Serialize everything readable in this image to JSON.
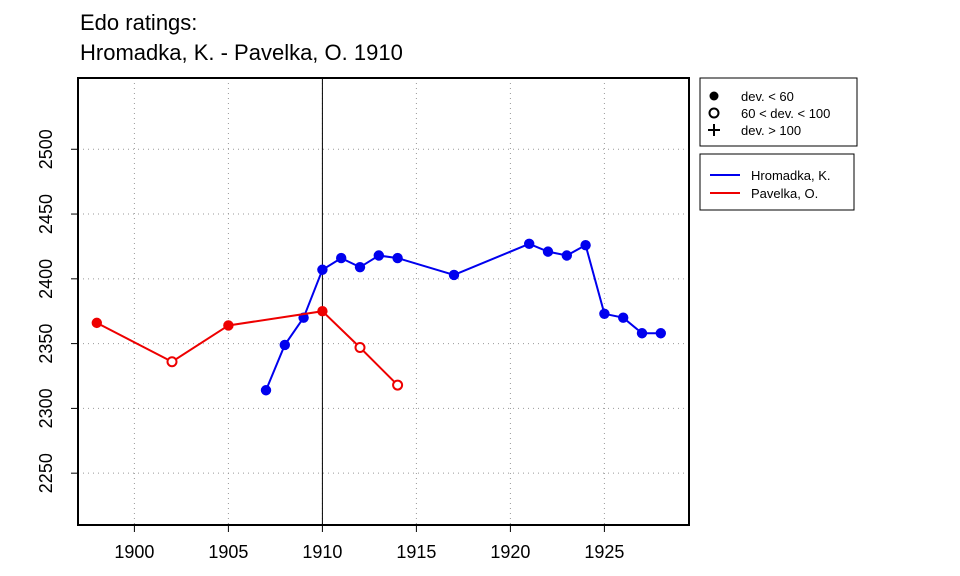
{
  "title": {
    "line1": "Edo ratings:",
    "line2": "Hromadka, K. - Pavelka, O. 1910"
  },
  "chart_data": {
    "type": "line",
    "title": "Edo ratings:\nHromadka, K. - Pavelka, O. 1910",
    "xlabel": "",
    "ylabel": "",
    "xlim": [
      1897,
      1929.5
    ],
    "ylim": [
      2210,
      2555
    ],
    "xticks": [
      1900,
      1905,
      1910,
      1915,
      1920,
      1925
    ],
    "yticks": [
      2250,
      2300,
      2350,
      2400,
      2450,
      2500
    ],
    "grid": true,
    "reference_line_x": 1910,
    "legend_placement": "right, outside plot",
    "deviation_legend": [
      {
        "label": "dev. < 60",
        "marker": "filled-circle"
      },
      {
        "label": "60 < dev. < 100",
        "marker": "open-circle"
      },
      {
        "label": "dev. > 100",
        "marker": "plus"
      }
    ],
    "series": [
      {
        "name": "Hromadka, K.",
        "color": "#0000ee",
        "points": [
          {
            "x": 1907,
            "y": 2314,
            "marker": "filled"
          },
          {
            "x": 1908,
            "y": 2349,
            "marker": "filled"
          },
          {
            "x": 1909,
            "y": 2370,
            "marker": "filled"
          },
          {
            "x": 1910,
            "y": 2407,
            "marker": "filled"
          },
          {
            "x": 1911,
            "y": 2416,
            "marker": "filled"
          },
          {
            "x": 1912,
            "y": 2409,
            "marker": "filled"
          },
          {
            "x": 1913,
            "y": 2418,
            "marker": "filled"
          },
          {
            "x": 1914,
            "y": 2416,
            "marker": "filled"
          },
          {
            "x": 1917,
            "y": 2403,
            "marker": "filled"
          },
          {
            "x": 1921,
            "y": 2427,
            "marker": "filled"
          },
          {
            "x": 1922,
            "y": 2421,
            "marker": "filled"
          },
          {
            "x": 1923,
            "y": 2418,
            "marker": "filled"
          },
          {
            "x": 1924,
            "y": 2426,
            "marker": "filled"
          },
          {
            "x": 1925,
            "y": 2373,
            "marker": "filled"
          },
          {
            "x": 1926,
            "y": 2370,
            "marker": "filled"
          },
          {
            "x": 1927,
            "y": 2358,
            "marker": "filled"
          },
          {
            "x": 1928,
            "y": 2358,
            "marker": "filled"
          }
        ]
      },
      {
        "name": "Pavelka, O.",
        "color": "#ee0000",
        "points": [
          {
            "x": 1898,
            "y": 2366,
            "marker": "filled"
          },
          {
            "x": 1902,
            "y": 2336,
            "marker": "open"
          },
          {
            "x": 1905,
            "y": 2364,
            "marker": "filled"
          },
          {
            "x": 1910,
            "y": 2375,
            "marker": "filled"
          },
          {
            "x": 1912,
            "y": 2347,
            "marker": "open"
          },
          {
            "x": 1914,
            "y": 2318,
            "marker": "open"
          }
        ]
      }
    ]
  }
}
